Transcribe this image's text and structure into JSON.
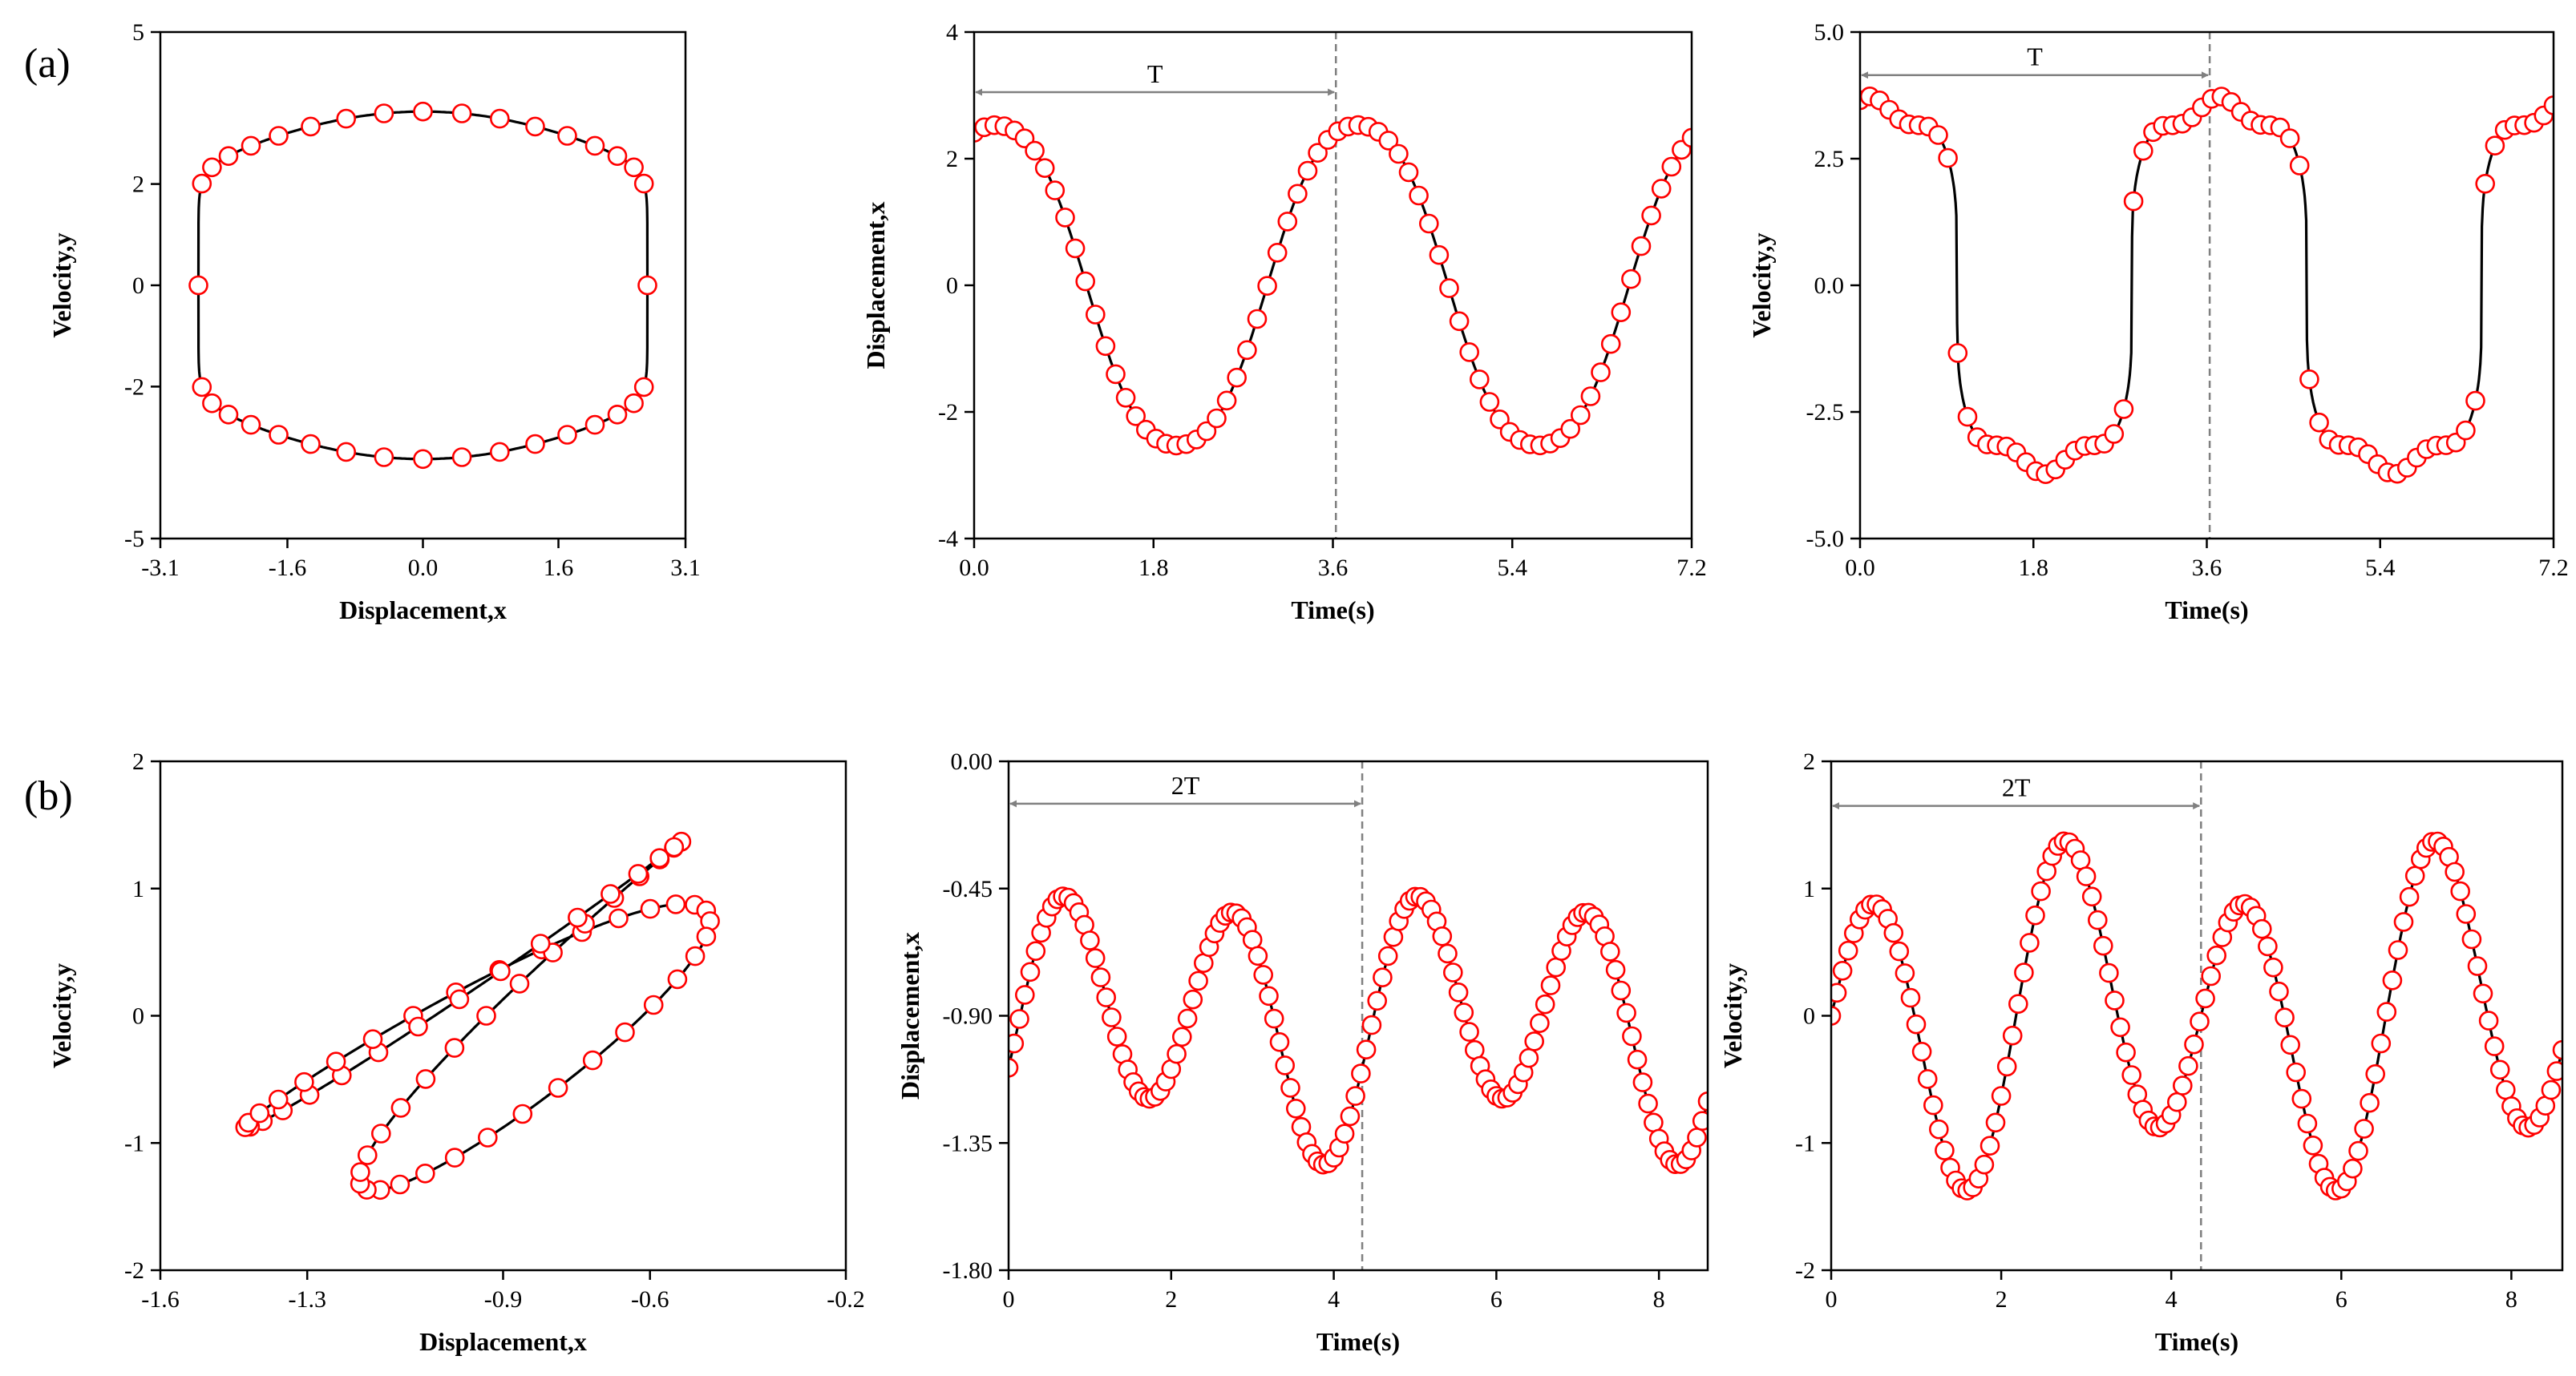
{
  "figure": {
    "row_labels": [
      "(a)",
      "(b)"
    ]
  },
  "chart_data": [
    {
      "id": "a1",
      "type": "line",
      "curve": "phase_a",
      "title": "",
      "xlabel": "Displacement,x",
      "ylabel": "Velocity,y",
      "xlim": [
        -3.1,
        3.1
      ],
      "ylim": [
        -5,
        5
      ],
      "xticks": [
        -3.1,
        -1.6,
        0.0,
        1.6,
        3.1
      ],
      "xtick_labels": [
        "-3.1",
        "-1.6",
        "0.0",
        "1.6",
        "3.1"
      ],
      "yticks": [
        -5,
        -2,
        0,
        2,
        5
      ],
      "ytick_labels": [
        "-5",
        "-2",
        "0",
        "2",
        "5"
      ],
      "series": [
        {
          "marker_count": 36,
          "line_color": "#000000",
          "marker_color": "#ff0000"
        }
      ]
    },
    {
      "id": "a2",
      "type": "line",
      "curve": "disp_a",
      "title": "",
      "xlabel": "Time(s)",
      "ylabel": "Displacement,x",
      "xlim": [
        0,
        7.2
      ],
      "ylim": [
        -4,
        4
      ],
      "xticks": [
        0,
        1.8,
        3.6,
        5.4,
        7.2
      ],
      "xtick_labels": [
        "0.0",
        "1.8",
        "3.6",
        "5.4",
        "7.2"
      ],
      "yticks": [
        -4,
        -2,
        0,
        2,
        4
      ],
      "ytick_labels": [
        "-4",
        "-2",
        "0",
        "2",
        "4"
      ],
      "series": [
        {
          "marker_count": 72,
          "line_color": "#000000",
          "marker_color": "#ff0000"
        }
      ],
      "annotations": [
        {
          "type": "period",
          "label": "T",
          "x_start": 0,
          "x_end": 3.63,
          "y": 3.05
        }
      ]
    },
    {
      "id": "a3",
      "type": "line",
      "curve": "vel_a",
      "title": "",
      "xlabel": "Time(s)",
      "ylabel": "Velocity,y",
      "xlim": [
        0,
        7.2
      ],
      "ylim": [
        -5,
        5
      ],
      "xticks": [
        0,
        1.8,
        3.6,
        5.4,
        7.2
      ],
      "xtick_labels": [
        "0.0",
        "1.8",
        "3.6",
        "5.4",
        "7.2"
      ],
      "yticks": [
        -5,
        -2.5,
        0,
        2.5,
        5
      ],
      "ytick_labels": [
        "-5.0",
        "-2.5",
        "0.0",
        "2.5",
        "5.0"
      ],
      "series": [
        {
          "marker_count": 72,
          "line_color": "#000000",
          "marker_color": "#ff0000"
        }
      ],
      "annotations": [
        {
          "type": "period",
          "label": "T",
          "x_start": 0,
          "x_end": 3.63,
          "y": 4.15
        }
      ]
    },
    {
      "id": "b1",
      "type": "line",
      "curve": "phase_b",
      "title": "",
      "xlabel": "Displacement,x",
      "ylabel": "Velocity,y",
      "xlim": [
        -1.6,
        -0.2
      ],
      "ylim": [
        -2,
        2
      ],
      "xticks": [
        -1.6,
        -1.3,
        -0.9,
        -0.6,
        -0.2
      ],
      "xtick_labels": [
        "-1.6",
        "-1.3",
        "-0.9",
        "-0.6",
        "-0.2"
      ],
      "yticks": [
        -2,
        -1,
        0,
        1,
        2
      ],
      "ytick_labels": [
        "-2",
        "-1",
        "0",
        "1",
        "2"
      ],
      "series": [
        {
          "marker_count": 64,
          "line_color": "#000000",
          "marker_color": "#ff0000"
        }
      ]
    },
    {
      "id": "b2",
      "type": "line",
      "curve": "disp_b",
      "title": "",
      "xlabel": "Time(s)",
      "ylabel": "Displacement,x",
      "xlim": [
        0,
        8.6
      ],
      "ylim": [
        -1.8,
        0
      ],
      "xticks": [
        0,
        2,
        4,
        6,
        8
      ],
      "xtick_labels": [
        "0",
        "2",
        "4",
        "6",
        "8"
      ],
      "yticks": [
        -1.8,
        -1.35,
        -0.9,
        -0.45,
        0
      ],
      "ytick_labels": [
        "-1.80",
        "-1.35",
        "-0.90",
        "-0.45",
        "0.00"
      ],
      "series": [
        {
          "marker_count": 130,
          "line_color": "#000000",
          "marker_color": "#ff0000"
        }
      ],
      "annotations": [
        {
          "type": "period",
          "label": "2T",
          "x_start": 0,
          "x_end": 4.35,
          "y": -0.15
        }
      ]
    },
    {
      "id": "b3",
      "type": "line",
      "curve": "vel_b",
      "title": "",
      "xlabel": "Time(s)",
      "ylabel": "Velocity,y",
      "xlim": [
        0,
        8.6
      ],
      "ylim": [
        -2,
        2
      ],
      "xticks": [
        0,
        2,
        4,
        6,
        8
      ],
      "xtick_labels": [
        "0",
        "2",
        "4",
        "6",
        "8"
      ],
      "yticks": [
        -2,
        -1,
        0,
        1,
        2
      ],
      "ytick_labels": [
        "-2",
        "-1",
        "0",
        "1",
        "2"
      ],
      "series": [
        {
          "marker_count": 130,
          "line_color": "#000000",
          "marker_color": "#ff0000"
        }
      ],
      "annotations": [
        {
          "type": "period",
          "label": "2T",
          "x_start": 0,
          "x_end": 4.35,
          "y": 1.65
        }
      ]
    }
  ]
}
